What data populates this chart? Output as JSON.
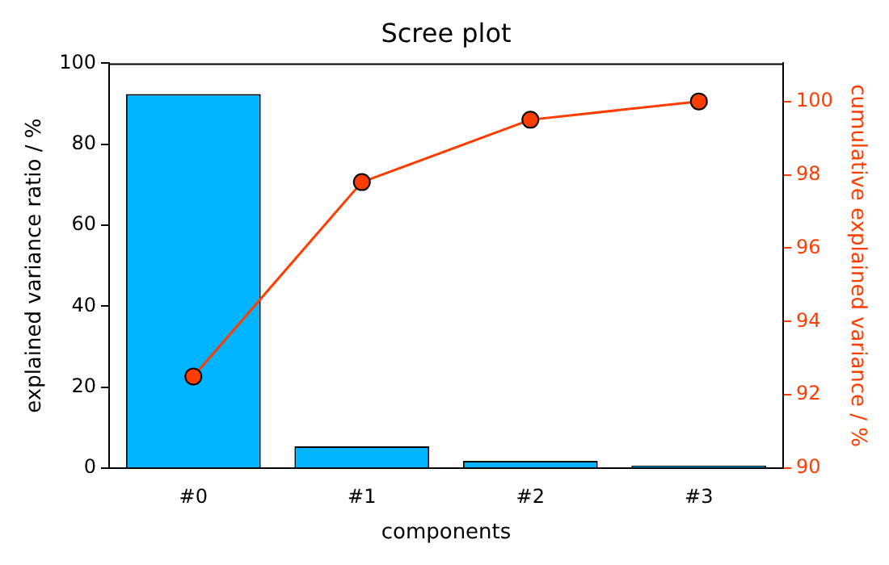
{
  "chart_data": {
    "type": "bar",
    "title": "Scree plot",
    "xlabel": "components",
    "ylabel": "explained variance ratio / %",
    "y2label": "cumulative explained variance / %",
    "categories": [
      "#0",
      "#1",
      "#2",
      "#3"
    ],
    "series": [
      {
        "color": "#00b4ff",
        "values": [
          92.4,
          5.4,
          1.8,
          0.6
        ]
      },
      {
        "type": "line",
        "axis": "y2",
        "color": "#ff3d00",
        "marker": "circle",
        "values": [
          92.5,
          97.8,
          99.5,
          100
        ]
      }
    ],
    "ylim": [
      0,
      100
    ],
    "yticks": [
      0,
      20,
      40,
      60,
      80,
      100
    ],
    "y2lim": [
      90,
      101.04
    ],
    "y2ticks": [
      90,
      92,
      94,
      96,
      98,
      100
    ],
    "grid": false,
    "legend": false
  }
}
